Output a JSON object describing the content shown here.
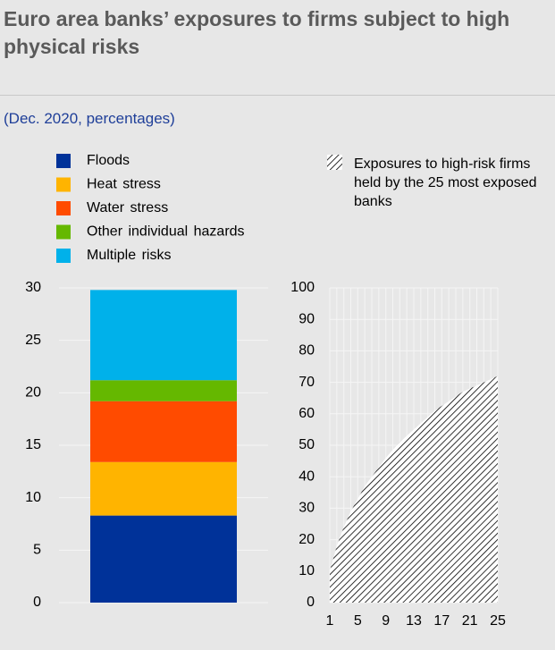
{
  "header": {
    "title": "Euro area banks’ exposures to firms subject to high physical risks",
    "subtitle": "(Dec. 2020, percentages)"
  },
  "chart_data": [
    {
      "type": "bar",
      "stacked": true,
      "categories": [
        null
      ],
      "series": [
        {
          "name": "Floods",
          "color": "#003299",
          "values": [
            8.3
          ]
        },
        {
          "name": "Heat stress",
          "color": "#ffb400",
          "values": [
            5.1
          ]
        },
        {
          "name": "Water stress",
          "color": "#ff4b00",
          "values": [
            5.8
          ]
        },
        {
          "name": "Other individual hazards",
          "color": "#65b800",
          "values": [
            2.0
          ]
        },
        {
          "name": "Multiple risks",
          "color": "#00b1ea",
          "values": [
            8.6
          ]
        }
      ],
      "ylim": [
        0,
        30
      ],
      "yticks": [
        0,
        5,
        10,
        15,
        20,
        25,
        30
      ],
      "grid": true
    },
    {
      "type": "area",
      "x": [
        1,
        2,
        3,
        4,
        5,
        6,
        7,
        8,
        9,
        10,
        11,
        12,
        13,
        14,
        15,
        16,
        17,
        18,
        19,
        20,
        21,
        22,
        23,
        24,
        25
      ],
      "series": [
        {
          "name": "Exposures to high-risk firms held by the 25 most exposed banks",
          "color": "#000000",
          "values": [
            10,
            18,
            24,
            29,
            33,
            37,
            40,
            43,
            46,
            48.5,
            51,
            53,
            55,
            57,
            59,
            61,
            62.5,
            64,
            65.5,
            67,
            68,
            69,
            70,
            71,
            72
          ]
        }
      ],
      "xlim": [
        1,
        25
      ],
      "xticks": [
        1,
        5,
        9,
        13,
        17,
        21,
        25
      ],
      "ylim": [
        0,
        100
      ],
      "yticks": [
        0,
        10,
        20,
        30,
        40,
        50,
        60,
        70,
        80,
        90,
        100
      ],
      "grid": true
    }
  ]
}
